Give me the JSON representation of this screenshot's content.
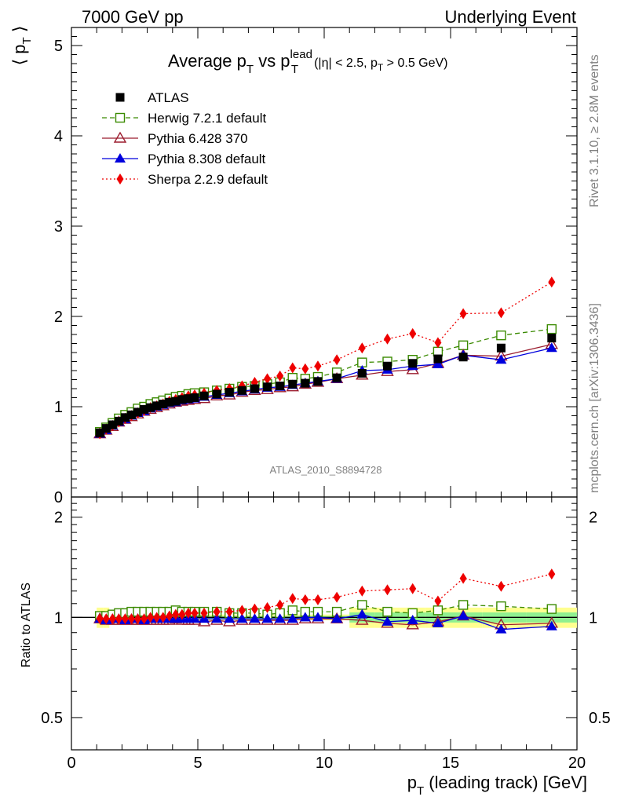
{
  "header": {
    "left": "7000 GeV pp",
    "right": "Underlying Event"
  },
  "title": {
    "main_a": "Average p",
    "main_sub": "T",
    "main_b": " vs p",
    "main_sup": "lead",
    "main_sub2": "T",
    "cond_a": "(|η| < 2.5, p",
    "cond_sub": "T",
    "cond_b": " > 0.5 GeV)"
  },
  "watermark": "ATLAS_2010_S8894728",
  "side_text": {
    "rivet": "Rivet 3.1.10, ≥ 2.8M events",
    "mcplots": "mcplots.cern.ch [arXiv:1306.3436]"
  },
  "axes": {
    "ylabel_top_a": "⟨ p",
    "ylabel_top_sub": "T",
    "ylabel_top_b": " ⟩",
    "ylabel_bottom": "Ratio to ATLAS",
    "xlabel_a": "p",
    "xlabel_sub": "T",
    "xlabel_b": " (leading track) [GeV]"
  },
  "chart_data": [
    {
      "type": "line",
      "panel": "main",
      "x": [
        1.125,
        1.375,
        1.625,
        1.875,
        2.125,
        2.375,
        2.625,
        2.875,
        3.125,
        3.375,
        3.625,
        3.875,
        4.125,
        4.375,
        4.625,
        4.875,
        5.25,
        5.75,
        6.25,
        6.75,
        7.25,
        7.75,
        8.25,
        8.75,
        9.25,
        9.75,
        10.5,
        11.5,
        12.5,
        13.5,
        14.5,
        15.5,
        17.0,
        19.0
      ],
      "xlim": [
        0,
        20
      ],
      "ylim": [
        0,
        5.2
      ],
      "yticks": [
        1,
        2,
        3,
        4,
        5
      ],
      "xticks": [
        0,
        5,
        10,
        15,
        20
      ],
      "legend_position": "top-left",
      "series": [
        {
          "name": "ATLAS",
          "color": "#000000",
          "marker": "square-filled",
          "line": "none",
          "values": [
            0.71,
            0.76,
            0.8,
            0.84,
            0.88,
            0.91,
            0.94,
            0.97,
            0.99,
            1.01,
            1.03,
            1.05,
            1.06,
            1.08,
            1.09,
            1.1,
            1.12,
            1.14,
            1.16,
            1.18,
            1.2,
            1.22,
            1.23,
            1.25,
            1.26,
            1.28,
            1.32,
            1.37,
            1.45,
            1.48,
            1.53,
            1.55,
            1.65,
            1.76
          ]
        },
        {
          "name": "Herwig 7.2.1 default",
          "color": "#3a8a00",
          "marker": "square-open",
          "line": "dashed",
          "values": [
            0.72,
            0.77,
            0.82,
            0.87,
            0.91,
            0.94,
            0.98,
            1.0,
            1.03,
            1.05,
            1.07,
            1.09,
            1.11,
            1.12,
            1.14,
            1.15,
            1.16,
            1.18,
            1.2,
            1.22,
            1.23,
            1.25,
            1.27,
            1.32,
            1.31,
            1.33,
            1.38,
            1.49,
            1.5,
            1.52,
            1.61,
            1.68,
            1.79,
            1.86
          ]
        },
        {
          "name": "Pythia 6.428 370",
          "color": "#9b1c2e",
          "marker": "triangle-open",
          "line": "solid",
          "values": [
            0.7,
            0.74,
            0.78,
            0.83,
            0.86,
            0.89,
            0.92,
            0.95,
            0.97,
            0.99,
            1.01,
            1.03,
            1.05,
            1.06,
            1.07,
            1.08,
            1.09,
            1.12,
            1.13,
            1.16,
            1.18,
            1.19,
            1.21,
            1.22,
            1.25,
            1.27,
            1.31,
            1.35,
            1.39,
            1.41,
            1.48,
            1.57,
            1.56,
            1.69
          ]
        },
        {
          "name": "Pythia 8.308 default",
          "color": "#0000dd",
          "marker": "triangle-filled",
          "line": "solid",
          "values": [
            0.7,
            0.74,
            0.79,
            0.83,
            0.86,
            0.9,
            0.93,
            0.95,
            0.98,
            1.0,
            1.02,
            1.04,
            1.05,
            1.07,
            1.08,
            1.09,
            1.11,
            1.13,
            1.15,
            1.17,
            1.19,
            1.21,
            1.22,
            1.24,
            1.26,
            1.28,
            1.31,
            1.4,
            1.41,
            1.45,
            1.47,
            1.57,
            1.52,
            1.65
          ]
        },
        {
          "name": "Sherpa 2.2.9 default",
          "color": "#ee0000",
          "marker": "diamond-filled",
          "line": "dotted",
          "values": [
            0.7,
            0.75,
            0.79,
            0.83,
            0.87,
            0.9,
            0.93,
            0.96,
            0.99,
            1.01,
            1.03,
            1.06,
            1.08,
            1.1,
            1.12,
            1.13,
            1.15,
            1.18,
            1.2,
            1.23,
            1.27,
            1.31,
            1.34,
            1.43,
            1.42,
            1.45,
            1.52,
            1.65,
            1.75,
            1.81,
            1.71,
            2.03,
            2.04,
            2.38
          ]
        }
      ]
    },
    {
      "type": "line",
      "panel": "ratio",
      "xlim": [
        0,
        20
      ],
      "ylim": [
        0.4,
        2.3
      ],
      "yscale": "log",
      "yticks": [
        0.5,
        1,
        2
      ],
      "reference": 1,
      "series": [
        {
          "name": "Herwig 7.2.1 default",
          "color": "#3a8a00",
          "values": [
            1.01,
            1.01,
            1.02,
            1.03,
            1.03,
            1.04,
            1.04,
            1.04,
            1.04,
            1.04,
            1.04,
            1.04,
            1.05,
            1.04,
            1.04,
            1.04,
            1.04,
            1.04,
            1.03,
            1.03,
            1.03,
            1.02,
            1.03,
            1.05,
            1.04,
            1.04,
            1.04,
            1.09,
            1.04,
            1.03,
            1.05,
            1.09,
            1.08,
            1.06
          ]
        },
        {
          "name": "Pythia 6.428 370",
          "color": "#9b1c2e",
          "values": [
            0.99,
            0.98,
            0.98,
            0.98,
            0.98,
            0.98,
            0.98,
            0.98,
            0.98,
            0.98,
            0.98,
            0.98,
            0.99,
            0.98,
            0.98,
            0.98,
            0.97,
            0.98,
            0.97,
            0.98,
            0.98,
            0.98,
            0.98,
            0.98,
            0.99,
            0.99,
            0.99,
            0.98,
            0.96,
            0.95,
            0.97,
            1.01,
            0.95,
            0.96
          ]
        },
        {
          "name": "Pythia 8.308 default",
          "color": "#0000dd",
          "values": [
            0.99,
            0.98,
            0.99,
            0.99,
            0.98,
            0.99,
            0.99,
            0.98,
            0.99,
            0.99,
            0.99,
            0.99,
            0.99,
            0.99,
            0.99,
            0.99,
            0.99,
            0.99,
            0.99,
            0.99,
            0.99,
            0.99,
            0.99,
            0.99,
            1.0,
            1.0,
            0.99,
            1.02,
            0.97,
            0.98,
            0.96,
            1.01,
            0.92,
            0.94
          ]
        },
        {
          "name": "Sherpa 2.2.9 default",
          "color": "#ee0000",
          "values": [
            0.99,
            0.99,
            0.99,
            0.99,
            0.99,
            0.99,
            0.99,
            0.99,
            1.0,
            1.0,
            1.0,
            1.01,
            1.02,
            1.02,
            1.03,
            1.03,
            1.03,
            1.04,
            1.04,
            1.05,
            1.06,
            1.07,
            1.09,
            1.14,
            1.13,
            1.13,
            1.15,
            1.2,
            1.21,
            1.22,
            1.12,
            1.31,
            1.24,
            1.35
          ]
        }
      ]
    }
  ]
}
